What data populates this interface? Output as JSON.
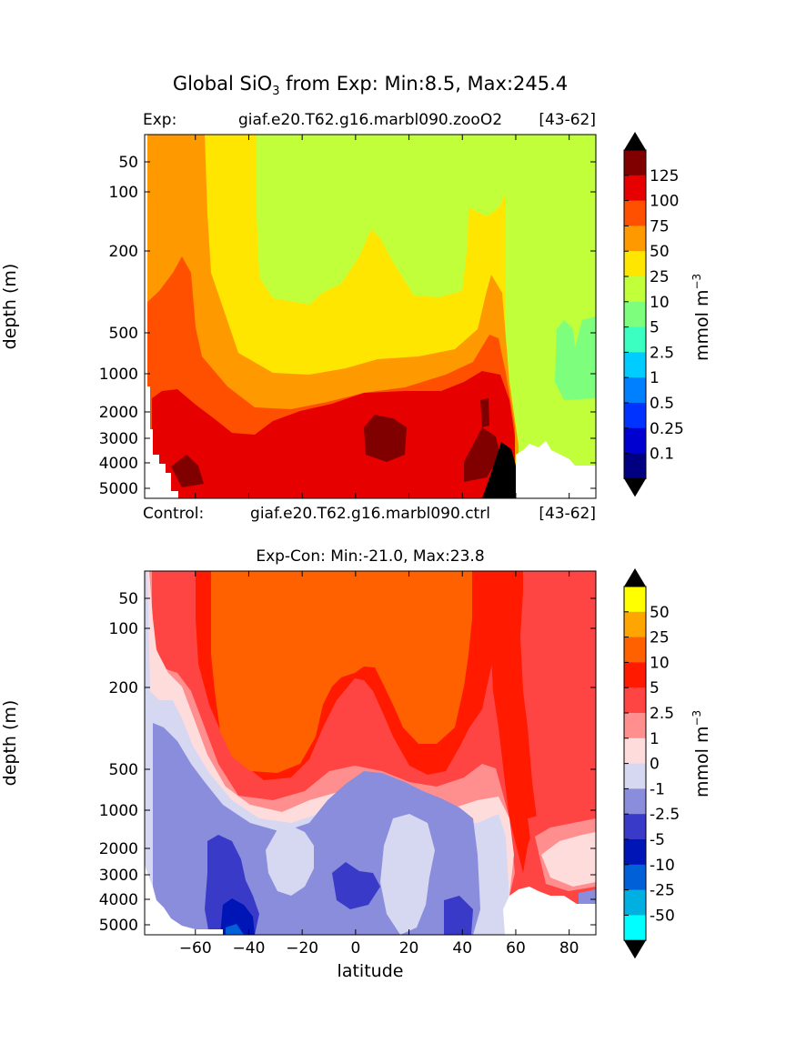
{
  "figure": {
    "title_main": "Global SiO",
    "title_sub": "3",
    "title_rest": " from Exp: Min:8.5, Max:245.4"
  },
  "top": {
    "left_label": "Exp:",
    "center_label": "giaf.e20.T62.g16.marbl090.zooO2",
    "right_label": "[43-62]",
    "ylabel": "depth (m)",
    "yticks": [
      "50",
      "100",
      "200",
      "500",
      "1000",
      "2000",
      "3000",
      "4000",
      "5000"
    ],
    "cbar_levels": [
      "125",
      "100",
      "75",
      "50",
      "25",
      "10",
      "5",
      "2.5",
      "1",
      "0.5",
      "0.25",
      "0.1"
    ],
    "cbar_colors": [
      "#800000",
      "#e60000",
      "#ff5000",
      "#ff9900",
      "#ffe600",
      "#c0ff3a",
      "#7dff7d",
      "#3affc0",
      "#00ccff",
      "#0080ff",
      "#0033ff",
      "#0000d0",
      "#000080"
    ],
    "cbar_label": "mmol m",
    "cbar_label_sup": "−3"
  },
  "bottom": {
    "above_left": "Control:",
    "above_center": "giaf.e20.T62.g16.marbl090.ctrl",
    "above_right": "[43-62]",
    "title": "Exp-Con: Min:-21.0, Max:23.8",
    "ylabel": "depth (m)",
    "xlabel": "latitude",
    "yticks": [
      "50",
      "100",
      "200",
      "500",
      "1000",
      "2000",
      "3000",
      "4000",
      "5000"
    ],
    "xticks": [
      "−60",
      "−40",
      "−20",
      "0",
      "20",
      "40",
      "60",
      "80"
    ],
    "cbar_levels": [
      "50",
      "25",
      "10",
      "5",
      "2.5",
      "1",
      "0",
      "-1",
      "-2.5",
      "-5",
      "-10",
      "-25",
      "-50"
    ],
    "cbar_colors": [
      "#ffff00",
      "#ffa500",
      "#ff6000",
      "#ff1a00",
      "#ff4444",
      "#ff8e8e",
      "#ffdcdc",
      "#d6d8f2",
      "#8a8ddb",
      "#3a3ac8",
      "#0015b5",
      "#0060d8",
      "#00b0e0",
      "#00ffff"
    ],
    "cbar_label": "mmol m",
    "cbar_label_sup": "−3"
  },
  "chart_data": [
    {
      "type": "heatmap",
      "title": "Global SiO3 from Exp: Min:8.5, Max:245.4",
      "panel": "Exp: giaf.e20.T62.g16.marbl090.zooO2 [43-62]",
      "xlabel": "",
      "ylabel": "depth (m)",
      "xlim": [
        -79,
        90
      ],
      "ylim": [
        5500,
        0
      ],
      "yticks": [
        50,
        100,
        200,
        500,
        1000,
        2000,
        3000,
        4000,
        5000
      ],
      "colorbar_levels": [
        0.1,
        0.25,
        0.5,
        1,
        2.5,
        5,
        10,
        25,
        50,
        75,
        100,
        125
      ],
      "colorbar_label": "mmol m-3",
      "min": 8.5,
      "max": 245.4
    },
    {
      "type": "heatmap",
      "title": "Exp-Con: Min:-21.0, Max:23.8",
      "panel": "Control: giaf.e20.T62.g16.marbl090.ctrl [43-62]",
      "xlabel": "latitude",
      "ylabel": "depth (m)",
      "xlim": [
        -79,
        90
      ],
      "ylim": [
        5500,
        0
      ],
      "xticks": [
        -60,
        -40,
        -20,
        0,
        20,
        40,
        60,
        80
      ],
      "yticks": [
        50,
        100,
        200,
        500,
        1000,
        2000,
        3000,
        4000,
        5000
      ],
      "colorbar_levels": [
        -50,
        -25,
        -10,
        -5,
        -2.5,
        -1,
        0,
        1,
        2.5,
        5,
        10,
        25,
        50
      ],
      "colorbar_label": "mmol m-3",
      "min": -21.0,
      "max": 23.8
    }
  ]
}
